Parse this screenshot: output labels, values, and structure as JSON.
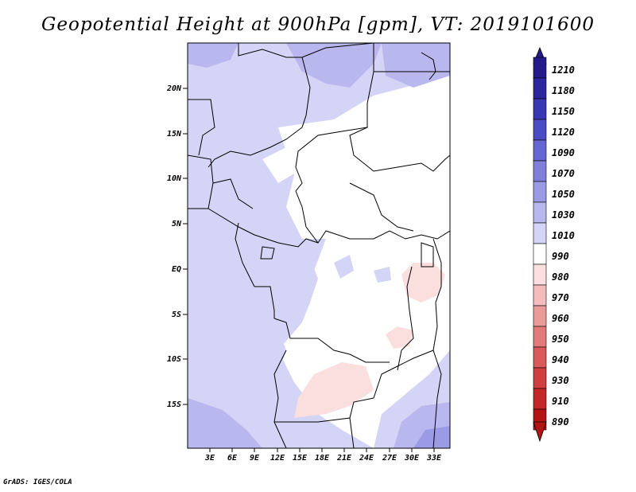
{
  "title": "Geopotential Height at 900hPa [gpm], VT: 2019101600",
  "credit": "GrADS: IGES/COLA",
  "map": {
    "lat_ticks": [
      "20N",
      "15N",
      "10N",
      "5N",
      "EQ",
      "5S",
      "10S",
      "15S"
    ],
    "lon_ticks": [
      "3E",
      "6E",
      "9E",
      "12E",
      "15E",
      "18E",
      "21E",
      "24E",
      "27E",
      "30E",
      "33E"
    ]
  },
  "legend": {
    "levels": [
      "1210",
      "1180",
      "1150",
      "1120",
      "1090",
      "1070",
      "1050",
      "1030",
      "1010",
      "990",
      "980",
      "970",
      "960",
      "950",
      "940",
      "930",
      "910",
      "890"
    ],
    "colors": [
      "#241b8a",
      "#2d279f",
      "#3a37b4",
      "#4b4bc6",
      "#6666d2",
      "#8080dc",
      "#9b9be5",
      "#b8b8ee",
      "#d4d4f6",
      "#ffffff",
      "#fbdede",
      "#f4bcbc",
      "#eb9a9a",
      "#e27a7a",
      "#d85a5a",
      "#cf3f3f",
      "#c42727",
      "#b31515"
    ]
  }
}
